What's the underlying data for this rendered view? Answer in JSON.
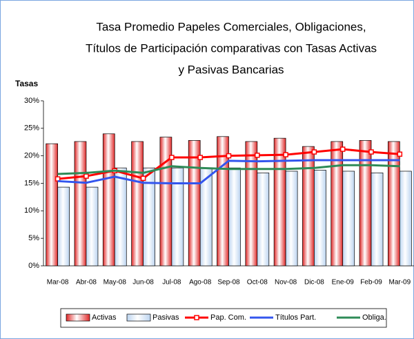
{
  "chart_data": {
    "type": "bar_line",
    "title": [
      "Tasa Promedio Papeles Comerciales, Obligaciones,",
      "Títulos de Participación comparativas con Tasas Activas",
      "y Pasivas Bancarias"
    ],
    "y_label": "Tasas",
    "categories": [
      "Mar-08",
      "Abr-08",
      "May-08",
      "Jun-08",
      "Jul-08",
      "Ago-08",
      "Sep-08",
      "Oct-08",
      "Nov-08",
      "Dic-08",
      "Ene-09",
      "Feb-09",
      "Mar-09"
    ],
    "ylim": [
      0,
      30
    ],
    "yticks": [
      {
        "value": 0,
        "label": "0%"
      },
      {
        "value": 5,
        "label": "5%"
      },
      {
        "value": 10,
        "label": "10%"
      },
      {
        "value": 15,
        "label": "15%"
      },
      {
        "value": 20,
        "label": "20%"
      },
      {
        "value": 25,
        "label": "25%"
      },
      {
        "value": 30,
        "label": "30%"
      }
    ],
    "series": [
      {
        "name": "Activas",
        "kind": "bar",
        "color": "#e02828",
        "values": [
          22.2,
          22.6,
          24.0,
          22.6,
          23.4,
          22.8,
          23.5,
          22.6,
          23.2,
          21.7,
          22.6,
          22.8,
          22.6
        ]
      },
      {
        "name": "Pasivas",
        "kind": "bar",
        "color": "#bcd4f0",
        "values": [
          14.3,
          14.3,
          17.8,
          17.8,
          17.8,
          17.8,
          17.8,
          16.9,
          17.2,
          17.4,
          17.2,
          16.9,
          17.2
        ]
      },
      {
        "name": "Pap. Com.",
        "kind": "line",
        "marker": "square",
        "color": "#ff0000",
        "values": [
          15.8,
          16.3,
          17.3,
          15.9,
          19.7,
          19.7,
          20.0,
          20.1,
          20.2,
          20.7,
          21.2,
          20.7,
          20.3
        ]
      },
      {
        "name": "Títulos Part.",
        "kind": "line",
        "color": "#3355ee",
        "values": [
          15.4,
          15.1,
          16.2,
          15.1,
          15.0,
          15.0,
          19.1,
          19.0,
          19.1,
          19.2,
          19.2,
          19.2,
          19.2
        ]
      },
      {
        "name": "Obliga.",
        "kind": "line",
        "color": "#2e8b57",
        "values": [
          16.7,
          16.9,
          17.3,
          16.9,
          18.1,
          17.8,
          17.6,
          17.6,
          17.6,
          17.8,
          18.3,
          18.3,
          18.1
        ]
      }
    ]
  }
}
